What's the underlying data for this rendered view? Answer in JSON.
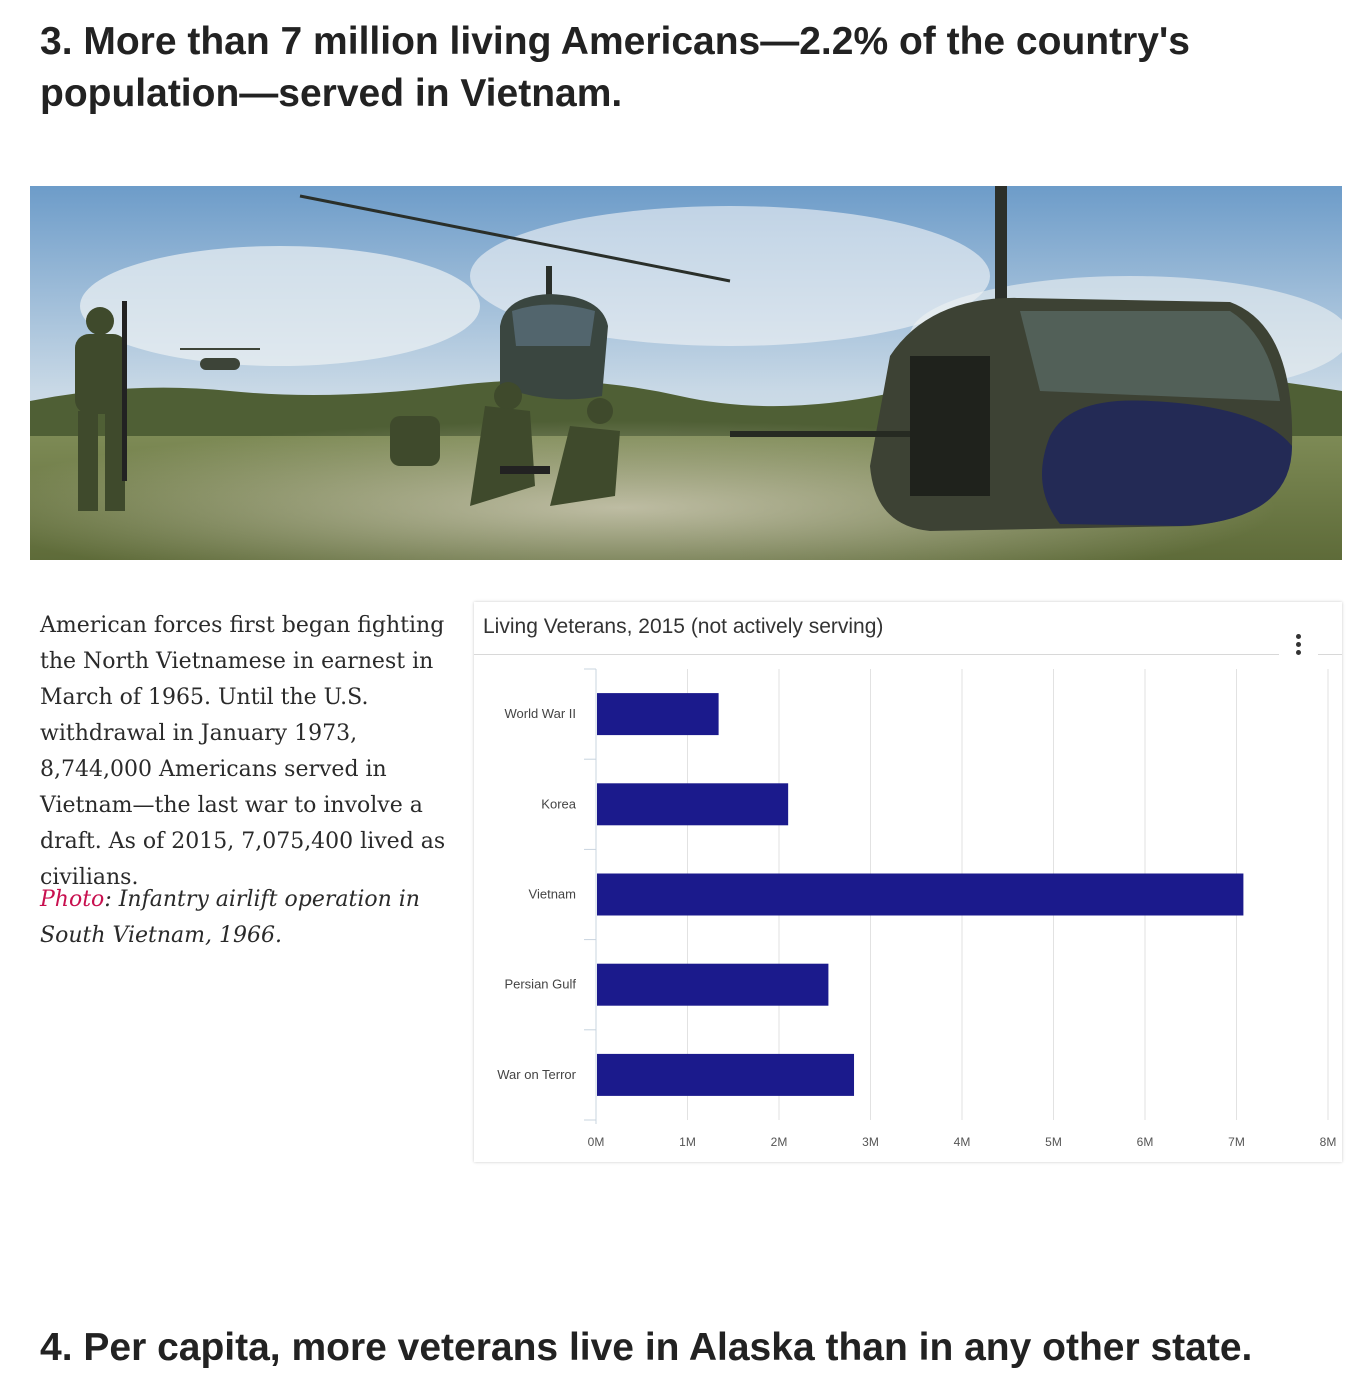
{
  "article": {
    "heading_3": "3. More than 7 million living Americans—2.2% of the country's population—served in Vietnam.",
    "paragraph": "American forces first began fighting the North Vietnamese in earnest in March of 1965. Until the U.S. withdrawal in January 1973, 8,744,000 Americans served in Vietnam—the last war to involve a draft. As of 2015, 7,075,400 lived as civilians.",
    "caption_label": "Photo",
    "caption_text": ": Infantry airlift operation in South Vietnam, 1966.",
    "heading_4": "4. Per capita, more veterans live in Alaska than in any other state."
  },
  "colors": {
    "bar": "#1b1a8c",
    "caption_link": "#c8104f",
    "heading": "#222222"
  },
  "icons": {
    "chart_menu": "vertical-ellipsis-icon"
  },
  "chart_data": {
    "type": "bar",
    "orientation": "horizontal",
    "title": "Living Veterans, 2015 (not actively serving)",
    "categories": [
      "World War II",
      "Korea",
      "Vietnam",
      "Persian Gulf",
      "War on Terror"
    ],
    "values": [
      1340000,
      2100000,
      7075400,
      2540000,
      2820000
    ],
    "xlim": [
      0,
      8000000
    ],
    "ticks": [
      0,
      1000000,
      2000000,
      3000000,
      4000000,
      5000000,
      6000000,
      7000000,
      8000000
    ],
    "tick_labels": [
      "0M",
      "1M",
      "2M",
      "3M",
      "4M",
      "5M",
      "6M",
      "7M",
      "8M"
    ],
    "grid": true,
    "legend": "none"
  }
}
